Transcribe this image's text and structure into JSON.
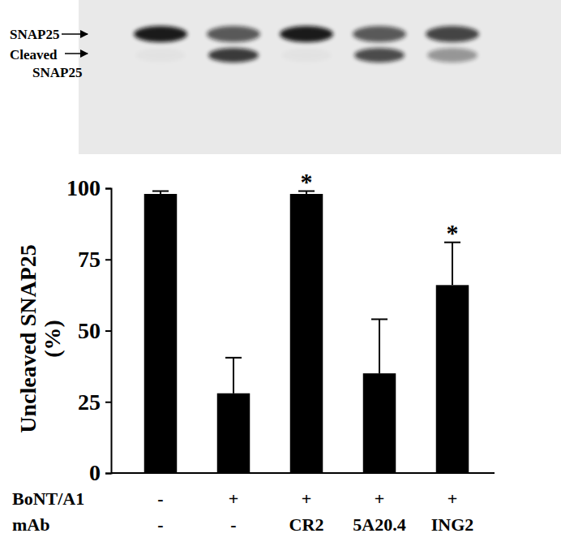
{
  "chart_data": {
    "type": "bar",
    "categories": [
      "-",
      "-",
      "CR2",
      "5A20.4",
      "ING2"
    ],
    "category_label": "mAb",
    "toxin": {
      "label": "BoNT/A1",
      "values": [
        "-",
        "+",
        "+",
        "+",
        "+"
      ]
    },
    "values": [
      98,
      28,
      98,
      35,
      66
    ],
    "errors": [
      1,
      12.5,
      1,
      19,
      15
    ],
    "color": "#000000",
    "y_label": [
      "Uncleaved SNAP25",
      "(%)"
    ],
    "ylim": [
      0,
      100
    ],
    "yticks": [
      0,
      25,
      50,
      75,
      100
    ],
    "grid": false,
    "annotations": [
      {
        "index": 2,
        "text": "*"
      },
      {
        "index": 4,
        "text": "*"
      }
    ],
    "blot_labels": {
      "uncleaved": "SNAP25",
      "cleaved": [
        "Cleaved",
        "SNAP25"
      ]
    }
  }
}
